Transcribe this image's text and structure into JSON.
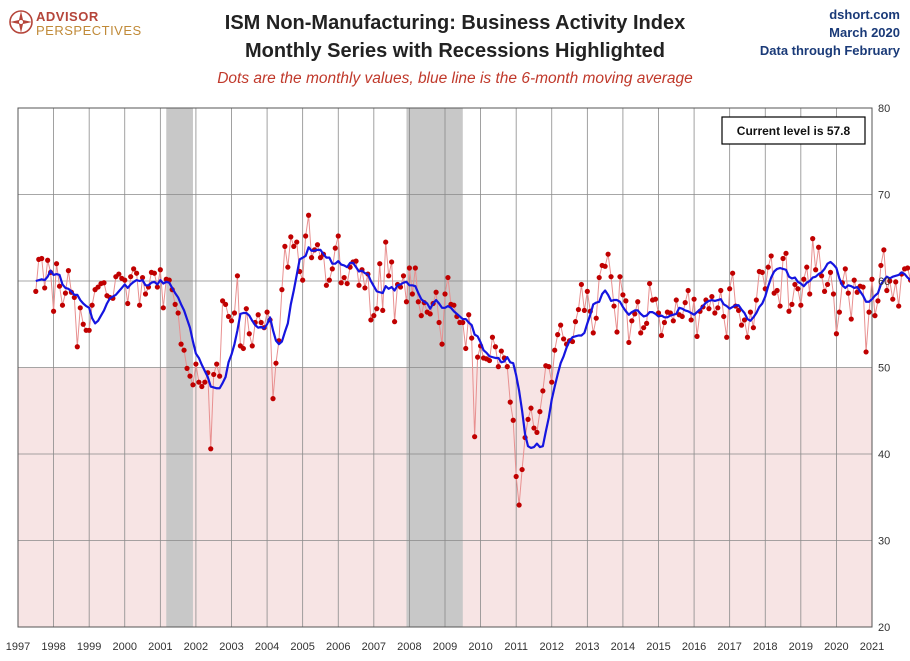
{
  "logo": {
    "line1": "ADVISOR",
    "line2": "PERSPECTIVES",
    "icon": "compass-icon"
  },
  "header": {
    "title_line1": "ISM Non-Manufacturing: Business Activity Index",
    "title_line2": "Monthly Series with Recessions Highlighted",
    "subtitle": "Dots are the monthly values, blue line is the 6-month moving average",
    "source": "dshort.com",
    "date": "March 2020",
    "data_through": "Data through February"
  },
  "colors": {
    "line": "#1515e0",
    "dots": "#c00000",
    "dot_connector": "#e89090",
    "recession": "#c8c8c8",
    "below_50_band": "#f7e4e4",
    "grid": "#8a8a8a"
  },
  "chart_data": {
    "type": "line",
    "ylim": [
      20,
      80
    ],
    "yticks": [
      20,
      30,
      40,
      50,
      60,
      70,
      80
    ],
    "xlim": [
      1997,
      2021
    ],
    "xticks": [
      "1997",
      "1998",
      "1999",
      "2000",
      "2001",
      "2002",
      "2003",
      "2004",
      "2005",
      "2006",
      "2007",
      "2008",
      "2009",
      "2010",
      "2011",
      "2012",
      "2013",
      "2014",
      "2015",
      "2016",
      "2017",
      "2018",
      "2019",
      "2020",
      "2021"
    ],
    "shaded_below": 50,
    "recessions": [
      {
        "start": "2001-03",
        "end": "2001-11"
      },
      {
        "start": "2007-12",
        "end": "2009-06"
      }
    ],
    "callout": "Current level is 57.8",
    "series": [
      {
        "kind": "dots",
        "note": "monthly values",
        "start": "1997-07",
        "values": [
          58.8,
          62.5,
          62.6,
          59.2,
          62.4,
          61.0,
          56.5,
          62.0,
          59.4,
          57.2,
          58.6,
          61.2,
          58.7,
          58.1,
          52.4,
          56.9,
          55.0,
          54.3,
          54.3,
          57.2,
          59.0,
          59.3,
          59.7,
          59.8,
          58.3,
          58.1,
          58.0,
          60.5,
          60.8,
          60.3,
          60.1,
          57.4,
          60.5,
          61.4,
          60.9,
          57.2,
          60.4,
          58.5,
          59.3,
          61.0,
          60.9,
          59.3,
          61.3,
          56.9,
          60.2,
          60.1,
          59.0,
          57.3,
          56.3,
          52.7,
          52.0,
          49.9,
          49.0,
          48.0,
          50.4,
          48.3,
          47.8,
          48.3,
          49.4,
          40.6,
          49.2,
          50.4,
          49.0,
          57.7,
          57.3,
          55.9,
          55.4,
          56.3,
          60.6,
          52.5,
          52.2,
          56.8,
          53.9,
          52.5,
          55.2,
          56.1,
          55.2,
          54.6,
          56.4,
          55.5,
          46.4,
          50.5,
          53.1,
          59.0,
          64.0,
          61.6,
          65.1,
          64.0,
          64.5,
          61.1,
          60.1,
          65.2,
          67.6,
          62.7,
          63.6,
          64.2,
          62.7,
          63.1,
          59.5,
          60.1,
          61.4,
          63.8,
          65.2,
          59.8,
          60.4,
          59.7,
          61.6,
          62.2,
          62.3,
          59.5,
          61.3,
          59.2,
          60.8,
          55.5,
          56.0,
          56.8,
          62.0,
          56.6,
          64.5,
          60.6,
          62.2,
          55.3,
          59.6,
          59.3,
          60.6,
          57.6,
          61.5,
          58.5,
          61.5,
          57.6,
          56.0,
          57.5,
          56.4,
          56.2,
          57.4,
          58.7,
          55.2,
          52.7,
          58.5,
          60.4,
          57.3,
          57.2,
          55.9,
          55.2,
          55.2,
          52.2,
          56.1,
          53.4,
          42.0,
          51.2,
          52.5,
          51.1,
          51.0,
          50.8,
          53.5,
          52.4,
          50.1,
          51.9,
          51.1,
          50.1,
          46.0,
          43.9,
          37.4,
          34.1,
          38.2,
          41.9,
          44.0,
          45.3,
          43.0,
          42.5,
          44.9,
          47.3,
          50.2,
          50.1,
          48.3,
          52.0,
          53.8,
          54.9,
          53.3,
          52.7,
          53.1,
          53.0,
          55.3,
          56.7,
          59.6,
          56.6,
          58.8,
          56.5,
          54.0,
          55.7,
          60.4,
          61.8,
          61.7,
          63.1,
          60.5,
          57.1,
          54.1,
          60.5,
          58.4,
          57.7,
          52.9,
          55.4,
          56.2,
          57.6,
          54.0,
          54.6,
          55.1,
          59.7,
          57.8,
          57.9,
          56.3,
          53.7,
          55.2,
          56.4,
          56.3,
          55.4,
          57.8,
          56.1,
          55.9,
          57.5,
          58.9,
          55.5,
          57.9,
          53.6,
          56.5,
          57.0,
          57.8,
          56.8,
          58.2,
          56.3,
          56.9,
          58.9,
          55.9,
          53.5,
          59.1,
          60.9,
          57.1,
          56.6,
          54.9,
          55.5,
          53.5,
          56.4,
          54.6,
          57.8,
          61.1,
          61.0,
          59.1,
          61.6,
          62.9,
          58.6,
          58.9,
          57.1,
          62.6,
          63.2,
          56.5,
          57.3,
          59.6,
          59.1,
          57.2,
          60.2,
          61.6,
          58.5,
          64.9,
          61.3,
          63.9,
          60.6,
          58.8,
          59.6,
          61.0,
          58.5,
          53.9,
          56.4,
          59.8,
          61.4,
          58.6,
          55.6,
          60.1,
          58.7,
          59.4,
          59.3,
          51.8,
          56.4,
          60.2,
          56.0,
          57.7,
          61.8,
          63.6,
          58.9,
          60.0,
          57.9,
          59.9,
          57.1,
          60.8,
          61.4,
          61.5,
          60.1,
          56.3,
          59.6,
          61.9,
          61.5,
          57.7,
          55.8,
          59.7,
          56.8,
          59.5,
          62.1,
          62.1,
          61.4,
          61.1,
          56.3,
          61.7,
          63.2,
          57.0,
          59.5,
          64.9,
          61.6,
          58.7,
          65.2,
          59.5,
          64.3,
          61.8,
          65.0,
          57.7,
          58.8,
          64.6,
          59.3,
          56.1,
          60.6,
          58.8,
          59.1,
          57.2,
          53.0,
          61.4,
          58.6,
          57.3,
          56.4,
          51.7,
          57.1,
          60.9,
          57.8
        ]
      },
      {
        "kind": "line",
        "note": "6-month moving average",
        "start": "1997-07",
        "values": [
          60.0,
          60.1,
          60.2,
          60.1,
          60.5,
          61.2,
          60.7,
          60.8,
          60.7,
          59.6,
          59.2,
          59.1,
          58.8,
          58.4,
          58.4,
          57.8,
          57.4,
          57.1,
          56.9,
          55.7,
          55.1,
          55.4,
          56.0,
          56.6,
          57.4,
          58.0,
          58.2,
          58.4,
          58.8,
          59.2,
          59.6,
          59.2,
          59.6,
          59.9,
          60.1,
          60.0,
          60.1,
          59.5,
          59.5,
          59.8,
          59.9,
          59.6,
          60.1,
          59.7,
          59.9,
          59.8,
          59.2,
          58.6,
          58.1,
          57.3,
          56.6,
          55.6,
          54.6,
          53.0,
          51.6,
          51.1,
          50.3,
          49.6,
          48.9,
          47.8,
          47.7,
          47.6,
          47.6,
          48.2,
          48.9,
          50.6,
          51.5,
          52.7,
          54.3,
          56.2,
          56.3,
          56.3,
          56.0,
          55.4,
          54.9,
          54.6,
          54.7,
          54.5,
          55.0,
          55.8,
          54.3,
          53.1,
          52.7,
          53.0,
          54.1,
          55.1,
          57.3,
          58.9,
          60.7,
          62.5,
          62.7,
          62.9,
          63.9,
          63.5,
          63.5,
          63.6,
          63.6,
          63.1,
          62.7,
          62.7,
          62.0,
          62.0,
          62.3,
          61.9,
          61.8,
          61.6,
          62.1,
          62.1,
          61.6,
          61.1,
          61.2,
          60.9,
          60.8,
          60.0,
          59.4,
          58.8,
          58.7,
          58.6,
          59.4,
          59.1,
          59.3,
          58.9,
          59.5,
          59.6,
          59.8,
          59.9,
          59.5,
          59.5,
          59.4,
          58.6,
          57.9,
          57.6,
          57.4,
          56.8,
          57.4,
          57.8,
          57.4,
          56.9,
          56.9,
          57.1,
          56.9,
          56.5,
          56.2,
          55.9,
          55.6,
          55.6,
          55.2,
          54.9,
          53.8,
          53.6,
          52.9,
          52.0,
          51.7,
          51.3,
          51.2,
          51.1,
          51.1,
          50.6,
          50.7,
          51.2,
          50.6,
          50.5,
          49.1,
          47.3,
          45.0,
          42.3,
          40.9,
          40.7,
          40.8,
          41.2,
          40.8,
          40.9,
          42.6,
          44.2,
          46.3,
          47.8,
          49.2,
          50.5,
          51.3,
          52.3,
          53.1,
          53.5,
          53.6,
          53.7,
          53.7,
          54.0,
          55.1,
          56.1,
          57.3,
          57.5,
          57.6,
          58.5,
          58.9,
          58.4,
          57.7,
          57.8,
          57.8,
          57.6,
          57.0,
          56.5,
          56.1,
          56.4,
          56.6,
          56.6,
          56.2,
          55.9,
          56.0,
          56.4,
          56.4,
          56.2,
          55.9,
          56.0,
          55.8,
          55.8,
          56.0,
          56.1,
          56.2,
          56.9,
          56.8,
          56.6,
          56.5,
          56.3,
          56.1,
          56.4,
          56.7,
          57.1,
          57.5,
          57.7,
          57.8,
          57.7,
          57.8,
          57.9,
          57.3,
          57.1,
          56.8,
          57.0,
          57.2,
          57.2,
          56.7,
          56.3,
          55.6,
          55.4,
          55.8,
          56.3,
          57.0,
          57.4,
          58.2,
          59.4,
          60.4,
          61.1,
          61.4,
          61.5,
          61.4,
          61.3,
          60.5,
          60.3,
          60.4,
          59.9,
          59.7,
          59.4,
          59.8,
          60.0,
          60.4,
          60.5,
          60.8,
          61.0,
          61.4,
          62.0,
          62.2,
          61.9,
          61.5,
          60.3,
          59.5,
          59.2,
          59.5,
          59.4,
          59.2,
          59.3,
          58.8,
          58.3,
          57.6,
          57.6,
          57.9,
          58.3,
          58.6,
          59.6,
          60.1,
          60.5,
          60.3,
          60.5,
          60.6,
          60.7,
          61.0,
          60.8,
          60.4,
          60.1,
          60.0,
          59.8,
          59.6,
          59.4,
          59.4,
          59.5,
          59.5,
          59.9,
          60.5,
          60.6,
          60.7,
          60.5,
          60.6,
          61.5,
          61.2,
          61.0,
          61.5,
          61.6,
          61.5,
          62.4,
          62.9,
          63.1,
          62.4,
          61.7,
          61.1,
          60.5,
          60.1,
          59.8,
          59.2,
          58.5,
          58.0,
          57.5,
          56.8,
          56.3,
          56.2,
          56.0,
          56.7,
          57.0,
          57.1,
          56.8
        ]
      }
    ]
  }
}
